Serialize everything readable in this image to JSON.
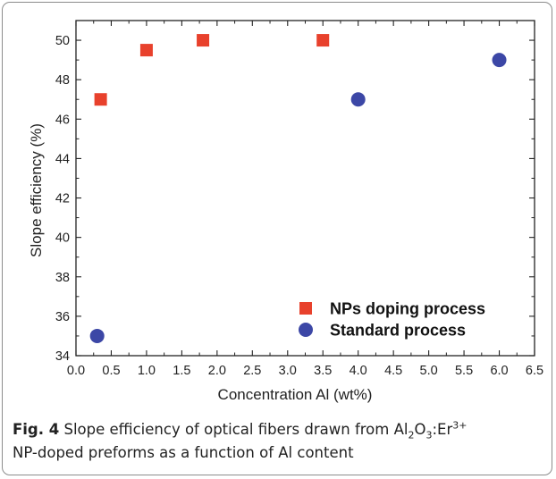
{
  "chart_data": {
    "type": "scatter",
    "xlabel": "Concentration  Al (wt%)",
    "ylabel": "Slope efficiency (%)",
    "xlim": [
      0.0,
      6.5
    ],
    "ylim": [
      34,
      51
    ],
    "x_ticks": [
      "0.0",
      "0.5",
      "1.0",
      "1.5",
      "2.0",
      "2.5",
      "3.0",
      "3.5",
      "4.0",
      "4.5",
      "5.0",
      "5.5",
      "6.0",
      "6.5"
    ],
    "y_ticks": [
      "34",
      "36",
      "38",
      "40",
      "42",
      "44",
      "46",
      "48",
      "50"
    ],
    "grid": false,
    "legend_position": "bottom-right",
    "series": [
      {
        "name": "NPs doping process",
        "marker": "square",
        "color": "#e8412c",
        "points": [
          {
            "x": 0.35,
            "y": 47.0
          },
          {
            "x": 1.0,
            "y": 49.5
          },
          {
            "x": 1.8,
            "y": 50.0
          },
          {
            "x": 3.5,
            "y": 50.0
          }
        ]
      },
      {
        "name": "Standard process",
        "marker": "circle",
        "color": "#3c47a6",
        "points": [
          {
            "x": 0.3,
            "y": 35.0
          },
          {
            "x": 4.0,
            "y": 47.0
          },
          {
            "x": 6.0,
            "y": 49.0
          }
        ]
      }
    ]
  },
  "caption": {
    "label": "Fig. 4",
    "text_a": " Slope efficiency of optical fibers drawn from Al",
    "sub1": "2",
    "text_b": "O",
    "sub2": "3",
    "text_c": ":Er",
    "sup1": "3+",
    "text_d": "NP-doped preforms as a function of Al content"
  }
}
